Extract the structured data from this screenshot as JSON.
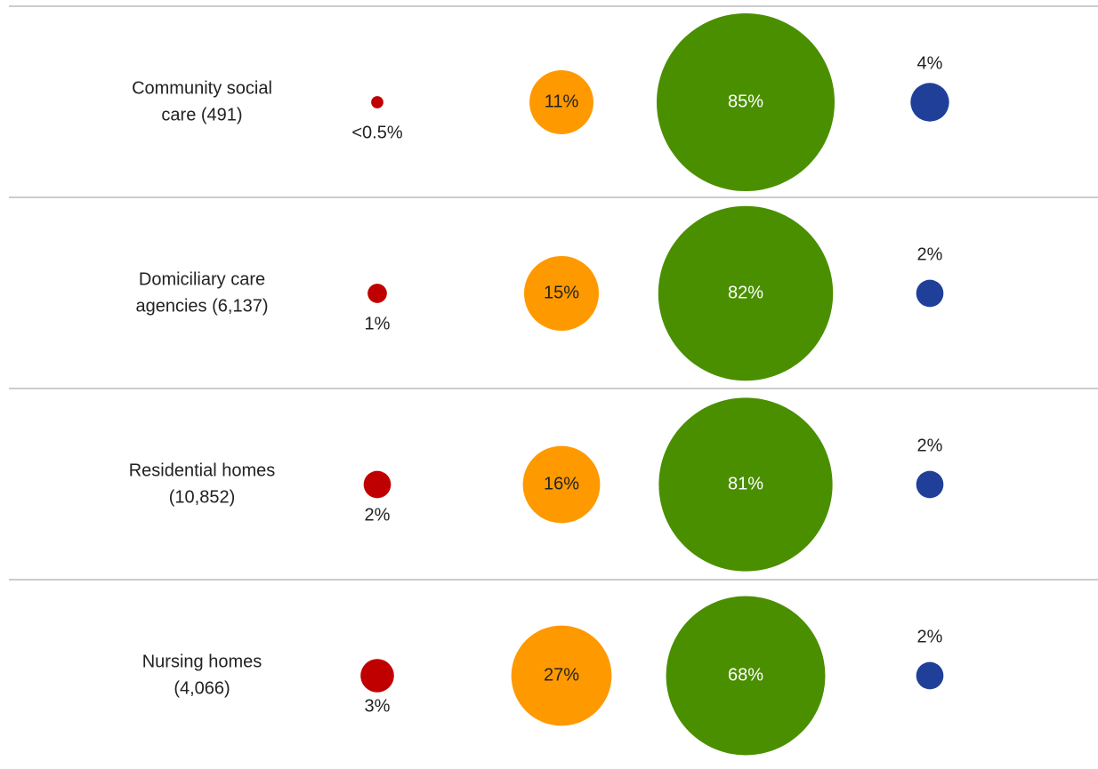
{
  "chart_data": {
    "type": "bubble",
    "categories": [
      [
        "Community social",
        "care (491)"
      ],
      [
        "Domiciliary care",
        "agencies (6,137)"
      ],
      [
        "Residential homes",
        "(10,852)"
      ],
      [
        "Nursing homes",
        "(4,066)"
      ]
    ],
    "series": [
      {
        "color": "#c00000",
        "values": [
          0.4,
          1,
          2,
          3
        ],
        "value_labels": [
          "<0.5%",
          "1%",
          "2%",
          "3%"
        ]
      },
      {
        "color": "#ff9900",
        "values": [
          11,
          15,
          16,
          27
        ],
        "value_labels": [
          "11%",
          "15%",
          "16%",
          "27%"
        ]
      },
      {
        "color": "#4a8f00",
        "values": [
          85,
          82,
          81,
          68
        ],
        "value_labels": [
          "85%",
          "82%",
          "81%",
          "68%"
        ]
      },
      {
        "color": "#1f3f99",
        "values": [
          4,
          2,
          2,
          2
        ],
        "value_labels": [
          "4%",
          "2%",
          "2%",
          "2%"
        ]
      }
    ]
  }
}
